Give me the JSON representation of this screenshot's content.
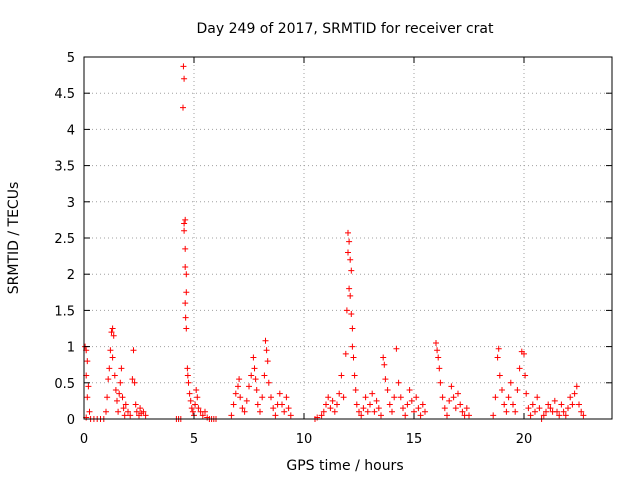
{
  "chart_data": {
    "type": "scatter",
    "title": "Day 249 of 2017, SRMTID for receiver crat",
    "xlabel": "GPS time / hours",
    "ylabel": "SRMTID / TECUs",
    "xlim": [
      0,
      24
    ],
    "ylim": [
      0,
      5
    ],
    "xticks": [
      0,
      5,
      10,
      15,
      20
    ],
    "yticks": [
      0,
      0.5,
      1,
      1.5,
      2,
      2.5,
      3,
      3.5,
      4,
      4.5,
      5
    ],
    "grid": true,
    "marker": "+",
    "color": "#ff0000",
    "series": [
      {
        "name": "SRMTID",
        "points": [
          [
            0.05,
            1.0
          ],
          [
            0.1,
            0.95
          ],
          [
            0.15,
            0.8
          ],
          [
            0.1,
            0.6
          ],
          [
            0.2,
            0.45
          ],
          [
            0.15,
            0.3
          ],
          [
            0.25,
            0.1
          ],
          [
            0.1,
            0.02
          ],
          [
            0.3,
            0.0
          ],
          [
            0.45,
            0.0
          ],
          [
            0.6,
            0.0
          ],
          [
            0.75,
            0.0
          ],
          [
            0.9,
            0.0
          ],
          [
            1.0,
            0.1
          ],
          [
            1.05,
            0.3
          ],
          [
            1.1,
            0.55
          ],
          [
            1.15,
            0.7
          ],
          [
            1.2,
            0.95
          ],
          [
            1.25,
            1.2
          ],
          [
            1.3,
            1.25
          ],
          [
            1.35,
            1.15
          ],
          [
            1.3,
            0.85
          ],
          [
            1.4,
            0.6
          ],
          [
            1.45,
            0.4
          ],
          [
            1.5,
            0.25
          ],
          [
            1.55,
            0.1
          ],
          [
            1.6,
            0.35
          ],
          [
            1.65,
            0.5
          ],
          [
            1.7,
            0.7
          ],
          [
            1.75,
            0.3
          ],
          [
            1.8,
            0.15
          ],
          [
            1.85,
            0.05
          ],
          [
            1.9,
            0.2
          ],
          [
            2.0,
            0.1
          ],
          [
            2.1,
            0.05
          ],
          [
            2.2,
            0.55
          ],
          [
            2.25,
            0.95
          ],
          [
            2.3,
            0.5
          ],
          [
            2.35,
            0.2
          ],
          [
            2.4,
            0.1
          ],
          [
            2.5,
            0.05
          ],
          [
            2.55,
            0.15
          ],
          [
            2.6,
            0.08
          ],
          [
            2.7,
            0.1
          ],
          [
            2.8,
            0.05
          ],
          [
            4.2,
            0.0
          ],
          [
            4.3,
            0.0
          ],
          [
            4.4,
            0.0
          ],
          [
            4.5,
            4.3
          ],
          [
            4.52,
            4.87
          ],
          [
            4.55,
            4.7
          ],
          [
            4.55,
            2.7
          ],
          [
            4.6,
            2.75
          ],
          [
            4.55,
            2.6
          ],
          [
            4.6,
            2.35
          ],
          [
            4.6,
            2.1
          ],
          [
            4.65,
            2.0
          ],
          [
            4.65,
            1.75
          ],
          [
            4.6,
            1.6
          ],
          [
            4.62,
            1.4
          ],
          [
            4.65,
            1.25
          ],
          [
            4.7,
            0.7
          ],
          [
            4.72,
            0.6
          ],
          [
            4.75,
            0.5
          ],
          [
            4.8,
            0.35
          ],
          [
            4.85,
            0.25
          ],
          [
            4.9,
            0.15
          ],
          [
            4.95,
            0.1
          ],
          [
            5.0,
            0.05
          ],
          [
            5.05,
            0.2
          ],
          [
            5.1,
            0.4
          ],
          [
            5.15,
            0.3
          ],
          [
            5.2,
            0.15
          ],
          [
            5.3,
            0.1
          ],
          [
            5.4,
            0.05
          ],
          [
            5.5,
            0.1
          ],
          [
            5.6,
            0.02
          ],
          [
            5.7,
            0.0
          ],
          [
            5.8,
            0.0
          ],
          [
            5.9,
            0.0
          ],
          [
            6.0,
            0.0
          ],
          [
            6.7,
            0.05
          ],
          [
            6.8,
            0.2
          ],
          [
            6.9,
            0.35
          ],
          [
            7.0,
            0.45
          ],
          [
            7.05,
            0.55
          ],
          [
            7.1,
            0.3
          ],
          [
            7.2,
            0.15
          ],
          [
            7.3,
            0.1
          ],
          [
            7.4,
            0.25
          ],
          [
            7.5,
            0.45
          ],
          [
            7.6,
            0.6
          ],
          [
            7.7,
            0.85
          ],
          [
            7.75,
            0.7
          ],
          [
            7.8,
            0.55
          ],
          [
            7.85,
            0.4
          ],
          [
            7.9,
            0.2
          ],
          [
            8.0,
            0.1
          ],
          [
            8.1,
            0.3
          ],
          [
            8.2,
            0.6
          ],
          [
            8.25,
            1.08
          ],
          [
            8.3,
            0.95
          ],
          [
            8.35,
            0.8
          ],
          [
            8.4,
            0.5
          ],
          [
            8.5,
            0.3
          ],
          [
            8.6,
            0.15
          ],
          [
            8.7,
            0.05
          ],
          [
            8.8,
            0.2
          ],
          [
            8.9,
            0.35
          ],
          [
            9.0,
            0.2
          ],
          [
            9.1,
            0.1
          ],
          [
            9.2,
            0.3
          ],
          [
            9.3,
            0.15
          ],
          [
            9.4,
            0.05
          ],
          [
            10.5,
            0.0
          ],
          [
            10.6,
            0.02
          ],
          [
            10.8,
            0.05
          ],
          [
            10.9,
            0.1
          ],
          [
            11.0,
            0.2
          ],
          [
            11.1,
            0.3
          ],
          [
            11.2,
            0.15
          ],
          [
            11.3,
            0.25
          ],
          [
            11.4,
            0.1
          ],
          [
            11.5,
            0.2
          ],
          [
            11.6,
            0.35
          ],
          [
            11.7,
            0.6
          ],
          [
            11.8,
            0.3
          ],
          [
            11.9,
            0.9
          ],
          [
            11.95,
            1.5
          ],
          [
            12.0,
            2.57
          ],
          [
            12.05,
            2.45
          ],
          [
            12.0,
            2.3
          ],
          [
            12.1,
            2.2
          ],
          [
            12.15,
            2.05
          ],
          [
            12.05,
            1.8
          ],
          [
            12.1,
            1.7
          ],
          [
            12.15,
            1.45
          ],
          [
            12.2,
            1.25
          ],
          [
            12.2,
            1.0
          ],
          [
            12.25,
            0.85
          ],
          [
            12.3,
            0.6
          ],
          [
            12.35,
            0.4
          ],
          [
            12.4,
            0.2
          ],
          [
            12.5,
            0.1
          ],
          [
            12.6,
            0.05
          ],
          [
            12.7,
            0.15
          ],
          [
            12.8,
            0.3
          ],
          [
            12.9,
            0.1
          ],
          [
            13.0,
            0.2
          ],
          [
            13.1,
            0.35
          ],
          [
            13.2,
            0.1
          ],
          [
            13.3,
            0.25
          ],
          [
            13.4,
            0.15
          ],
          [
            13.5,
            0.05
          ],
          [
            13.6,
            0.85
          ],
          [
            13.65,
            0.75
          ],
          [
            13.7,
            0.55
          ],
          [
            13.8,
            0.4
          ],
          [
            13.9,
            0.2
          ],
          [
            14.0,
            0.1
          ],
          [
            14.1,
            0.3
          ],
          [
            14.2,
            0.97
          ],
          [
            14.3,
            0.5
          ],
          [
            14.4,
            0.3
          ],
          [
            14.5,
            0.15
          ],
          [
            14.6,
            0.05
          ],
          [
            14.7,
            0.2
          ],
          [
            14.8,
            0.4
          ],
          [
            14.9,
            0.25
          ],
          [
            15.0,
            0.1
          ],
          [
            15.1,
            0.3
          ],
          [
            15.2,
            0.15
          ],
          [
            15.3,
            0.05
          ],
          [
            15.4,
            0.2
          ],
          [
            15.5,
            0.1
          ],
          [
            16.0,
            1.05
          ],
          [
            16.05,
            0.95
          ],
          [
            16.1,
            0.85
          ],
          [
            16.15,
            0.7
          ],
          [
            16.2,
            0.5
          ],
          [
            16.3,
            0.3
          ],
          [
            16.4,
            0.15
          ],
          [
            16.5,
            0.05
          ],
          [
            16.6,
            0.25
          ],
          [
            16.7,
            0.45
          ],
          [
            16.8,
            0.3
          ],
          [
            16.9,
            0.15
          ],
          [
            17.0,
            0.35
          ],
          [
            17.1,
            0.2
          ],
          [
            17.2,
            0.1
          ],
          [
            17.3,
            0.05
          ],
          [
            17.4,
            0.15
          ],
          [
            17.5,
            0.05
          ],
          [
            18.6,
            0.05
          ],
          [
            18.7,
            0.3
          ],
          [
            18.8,
            0.85
          ],
          [
            18.85,
            0.97
          ],
          [
            18.9,
            0.6
          ],
          [
            19.0,
            0.4
          ],
          [
            19.1,
            0.2
          ],
          [
            19.2,
            0.1
          ],
          [
            19.3,
            0.3
          ],
          [
            19.4,
            0.5
          ],
          [
            19.5,
            0.2
          ],
          [
            19.6,
            0.1
          ],
          [
            19.7,
            0.4
          ],
          [
            19.8,
            0.7
          ],
          [
            19.9,
            0.93
          ],
          [
            20.0,
            0.9
          ],
          [
            20.05,
            0.6
          ],
          [
            20.1,
            0.35
          ],
          [
            20.2,
            0.15
          ],
          [
            20.3,
            0.05
          ],
          [
            20.4,
            0.2
          ],
          [
            20.5,
            0.1
          ],
          [
            20.6,
            0.3
          ],
          [
            20.7,
            0.15
          ],
          [
            20.8,
            0.0
          ],
          [
            20.9,
            0.05
          ],
          [
            21.0,
            0.1
          ],
          [
            21.1,
            0.2
          ],
          [
            21.2,
            0.15
          ],
          [
            21.3,
            0.1
          ],
          [
            21.4,
            0.25
          ],
          [
            21.5,
            0.1
          ],
          [
            21.6,
            0.05
          ],
          [
            21.7,
            0.2
          ],
          [
            21.8,
            0.1
          ],
          [
            21.9,
            0.05
          ],
          [
            22.0,
            0.15
          ],
          [
            22.1,
            0.3
          ],
          [
            22.2,
            0.2
          ],
          [
            22.3,
            0.35
          ],
          [
            22.4,
            0.45
          ],
          [
            22.5,
            0.2
          ],
          [
            22.6,
            0.1
          ],
          [
            22.7,
            0.05
          ]
        ]
      }
    ]
  }
}
